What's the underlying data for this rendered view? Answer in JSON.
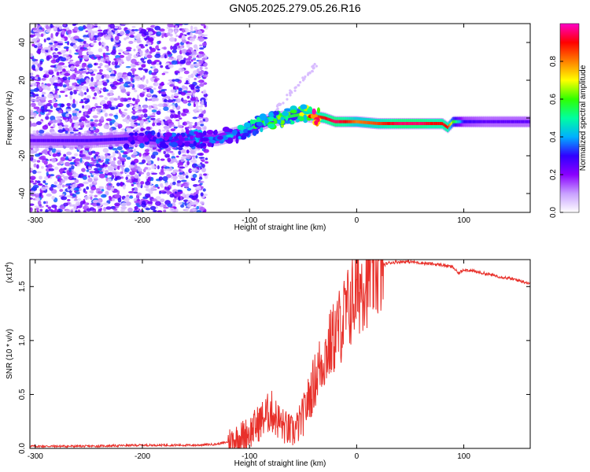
{
  "figure_title": "GN05.2025.279.05.26.R16",
  "chart_data": [
    {
      "type": "heatmap",
      "title": "GN05.2025.279.05.26.R16",
      "xlabel": "Height of straight line (km)",
      "ylabel": "Frequency (Hz)",
      "xlim": [
        -305,
        162
      ],
      "ylim": [
        -50,
        50
      ],
      "xticks": [
        -300,
        -200,
        -100,
        0,
        100
      ],
      "yticks": [
        -40,
        -20,
        0,
        20,
        40
      ],
      "colorbar": {
        "label": "Normalized spectral amplitude",
        "range": [
          0,
          1
        ],
        "ticks": [
          "0.0",
          "0.2",
          "0.4",
          "0.6",
          "0.8"
        ],
        "colormap": [
          "#ffffff",
          "#c8a0ff",
          "#8a00ff",
          "#3000ff",
          "#00b0ff",
          "#00ffa0",
          "#30ff00",
          "#ffff00",
          "#ff8000",
          "#ff0000",
          "#ff00c8"
        ]
      },
      "ridge": {
        "x": [
          -305,
          -250,
          -210,
          -180,
          -150,
          -130,
          -110,
          -100,
          -90,
          -80,
          -70,
          -60,
          -50,
          -40,
          -30,
          -20,
          -10,
          0,
          20,
          40,
          60,
          70,
          80,
          85,
          90,
          100,
          120,
          140,
          162
        ],
        "freq": [
          -12,
          -12,
          -11,
          -12,
          -11,
          -11,
          -8,
          -6,
          -3,
          -1,
          0,
          1,
          2,
          1,
          0,
          -2,
          -2,
          -2,
          -3,
          -3,
          -3,
          -3,
          -3,
          -5,
          -2,
          -2,
          -2,
          -2,
          -2
        ],
        "amplitude": [
          0.25,
          0.28,
          0.3,
          0.3,
          0.35,
          0.35,
          0.4,
          0.45,
          0.5,
          0.5,
          0.55,
          0.55,
          0.6,
          0.85,
          0.9,
          0.95,
          0.9,
          0.8,
          0.85,
          0.95,
          0.95,
          0.9,
          0.9,
          0.9,
          0.6,
          0.3,
          0.25,
          0.25,
          0.25
        ]
      }
    },
    {
      "type": "line",
      "title": "",
      "xlabel": "Height of straight line (km)",
      "ylabel": "SNR (10 * v/v)",
      "y_scale_label": "(x10^4)",
      "y_scale_base": "(x10",
      "y_scale_exp": "4",
      "xlim": [
        -305,
        162
      ],
      "ylim": [
        0,
        1.75
      ],
      "xticks": [
        -300,
        -200,
        -100,
        0,
        100
      ],
      "yticks": [
        "0.0",
        "0.5",
        "1.0",
        "1.5"
      ],
      "ytick_values": [
        0,
        0.5,
        1.0,
        1.5
      ],
      "series": [
        {
          "name": "SNR",
          "color": "#e8302a",
          "x": [
            -305,
            -250,
            -200,
            -150,
            -130,
            -120,
            -110,
            -100,
            -95,
            -90,
            -85,
            -80,
            -75,
            -70,
            -65,
            -60,
            -55,
            -50,
            -45,
            -40,
            -35,
            -30,
            -25,
            -20,
            -15,
            -10,
            -5,
            0,
            5,
            10,
            15,
            20,
            25,
            30,
            40,
            50,
            60,
            70,
            80,
            90,
            95,
            100,
            110,
            120,
            130,
            140,
            150,
            162
          ],
          "y": [
            0.02,
            0.02,
            0.03,
            0.03,
            0.04,
            0.06,
            0.1,
            0.15,
            0.2,
            0.25,
            0.3,
            0.35,
            0.28,
            0.22,
            0.18,
            0.15,
            0.2,
            0.3,
            0.45,
            0.6,
            0.75,
            0.85,
            0.95,
            1.05,
            1.15,
            1.25,
            1.35,
            1.45,
            1.55,
            1.6,
            1.65,
            1.68,
            1.7,
            1.72,
            1.73,
            1.73,
            1.72,
            1.71,
            1.7,
            1.68,
            1.62,
            1.66,
            1.64,
            1.62,
            1.6,
            1.58,
            1.56,
            1.53
          ]
        }
      ]
    }
  ]
}
